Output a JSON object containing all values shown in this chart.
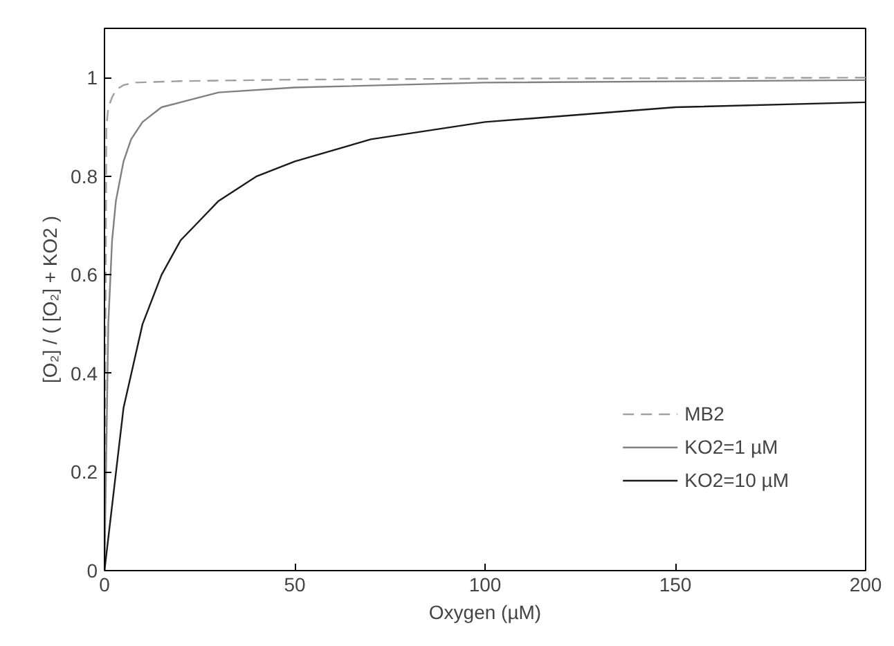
{
  "chart_data": {
    "type": "line",
    "xlabel": "Oxygen (µM)",
    "ylabel": "[O₂] / ( [O₂] + KO2 )",
    "xlim": [
      0,
      200
    ],
    "ylim": [
      0,
      1.1
    ],
    "xticks": [
      0,
      50,
      100,
      150,
      200
    ],
    "yticks": [
      0,
      0.2,
      0.4,
      0.6,
      0.8,
      1
    ],
    "grid": false,
    "legend": "bottom right",
    "series": [
      {
        "name": "MB2",
        "color": "#a0a0a0",
        "line_style": "dashed",
        "x": [
          0,
          0.5,
          1,
          2,
          3,
          5,
          8,
          20,
          50,
          100,
          200
        ],
        "values": [
          0,
          0.9,
          0.94,
          0.96,
          0.975,
          0.985,
          0.99,
          0.993,
          0.996,
          0.998,
          1.0
        ]
      },
      {
        "name": "KO2=1 µM",
        "color": "#808080",
        "line_style": "solid",
        "x": [
          0,
          1,
          2,
          3,
          5,
          7,
          10,
          15,
          20,
          30,
          50,
          100,
          200
        ],
        "values": [
          0,
          0.5,
          0.67,
          0.75,
          0.83,
          0.875,
          0.91,
          0.94,
          0.95,
          0.97,
          0.98,
          0.99,
          0.995
        ]
      },
      {
        "name": "KO2=10 µM",
        "color": "#1a1a1a",
        "line_style": "solid",
        "x": [
          0,
          5,
          10,
          15,
          20,
          25,
          30,
          40,
          50,
          70,
          100,
          150,
          200
        ],
        "values": [
          0,
          0.33,
          0.5,
          0.6,
          0.67,
          0.71,
          0.75,
          0.8,
          0.83,
          0.875,
          0.91,
          0.94,
          0.95
        ]
      }
    ]
  }
}
